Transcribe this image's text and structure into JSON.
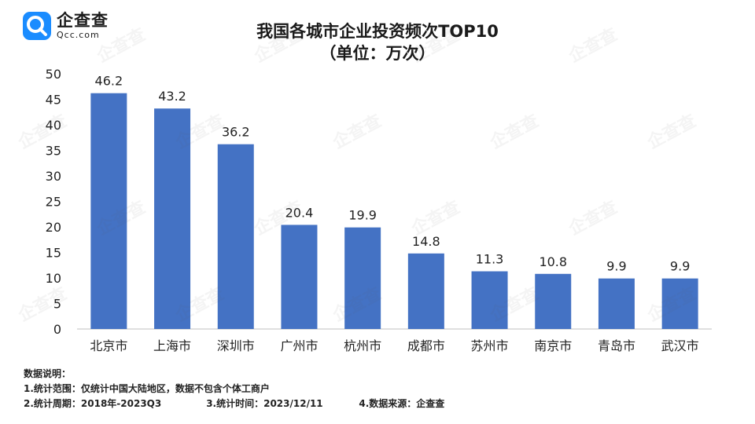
{
  "brand": {
    "name": "企查查",
    "domain": "Qcc.com",
    "icon": "qcc-magnifier-logo",
    "color": "#1a8cff"
  },
  "title_line1": "我国各城市企业投资频次TOP10",
  "title_line2": "（单位：万次）",
  "chart_data": {
    "type": "bar",
    "categories": [
      "北京市",
      "上海市",
      "深圳市",
      "广州市",
      "杭州市",
      "成都市",
      "苏州市",
      "南京市",
      "青岛市",
      "武汉市"
    ],
    "values": [
      46.2,
      43.2,
      36.2,
      20.4,
      19.9,
      14.8,
      11.3,
      10.8,
      9.9,
      9.9
    ],
    "data_labels": [
      "46.2",
      "43.2",
      "36.2",
      "20.4",
      "19.9",
      "14.8",
      "11.3",
      "10.8",
      "9.9",
      "9.9"
    ],
    "yticks": [
      "0",
      "5",
      "10",
      "15",
      "20",
      "25",
      "30",
      "35",
      "40",
      "45",
      "50"
    ],
    "ylim": [
      0,
      50
    ],
    "bar_color": "#4472c4",
    "grid": false,
    "legend": "none"
  },
  "notes": {
    "heading": "数据说明：",
    "line1": "1.统计范围：仅统计中国大陆地区，数据不包含个体工商户",
    "line2_a": "2.统计周期：2018年-2023Q3",
    "line2_b": "3.统计时间：2023/12/11",
    "line2_c": "4.数据来源：企查查"
  },
  "watermark": "企查查"
}
